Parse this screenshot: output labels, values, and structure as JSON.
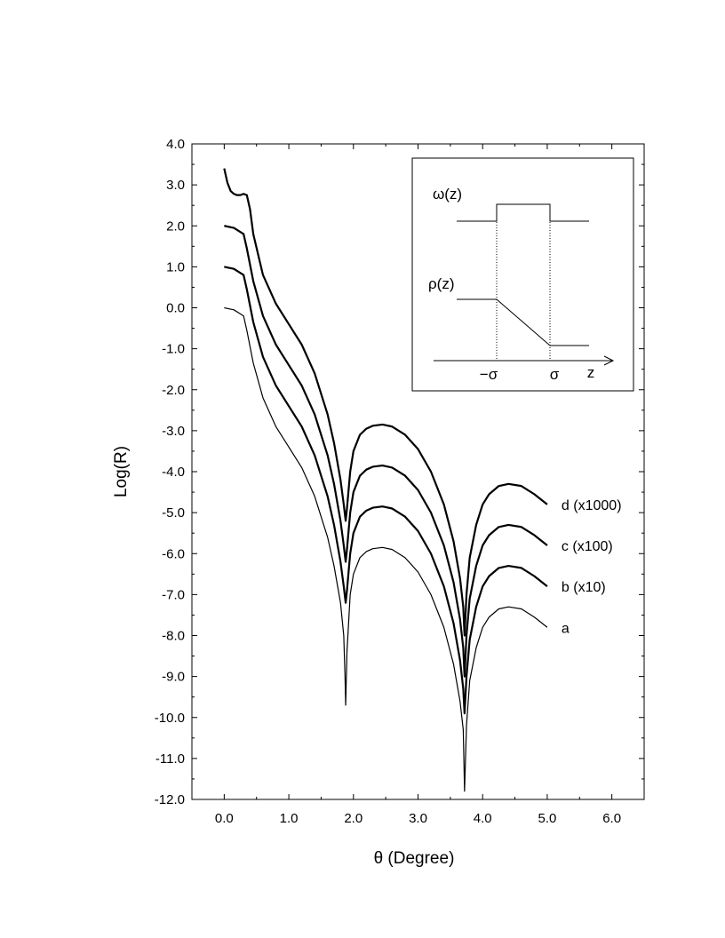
{
  "chart_data": {
    "type": "line",
    "xlabel": "θ (Degree)",
    "ylabel": "Log(R)",
    "xlim": [
      -0.5,
      6.5
    ],
    "ylim": [
      -12.0,
      4.0
    ],
    "x_ticks": [
      "0.0",
      "1.0",
      "2.0",
      "3.0",
      "4.0",
      "5.0",
      "6.0"
    ],
    "y_ticks": [
      "4.0",
      "3.0",
      "2.0",
      "1.0",
      "0.0",
      "-1.0",
      "-2.0",
      "-3.0",
      "-4.0",
      "-5.0",
      "-6.0",
      "-7.0",
      "-8.0",
      "-9.0",
      "-10.0",
      "-11.0",
      "-12.0"
    ],
    "grid": false,
    "series": [
      {
        "name": "a",
        "x": [
          0.0,
          0.15,
          0.25,
          0.3,
          0.35,
          0.45,
          0.6,
          0.8,
          1.0,
          1.2,
          1.4,
          1.6,
          1.7,
          1.8,
          1.85,
          1.87,
          1.88,
          1.9,
          1.95,
          2.0,
          2.1,
          2.2,
          2.3,
          2.45,
          2.6,
          2.8,
          3.0,
          3.2,
          3.4,
          3.55,
          3.65,
          3.7,
          3.72,
          3.75,
          3.8,
          3.9,
          4.0,
          4.1,
          4.25,
          4.4,
          4.6,
          4.8,
          5.0
        ],
        "y": [
          0.0,
          -0.05,
          -0.15,
          -0.2,
          -0.55,
          -1.35,
          -2.2,
          -2.9,
          -3.4,
          -3.9,
          -4.6,
          -5.6,
          -6.3,
          -7.2,
          -8.0,
          -9.0,
          -9.7,
          -8.4,
          -7.0,
          -6.5,
          -6.1,
          -5.95,
          -5.88,
          -5.85,
          -5.9,
          -6.1,
          -6.45,
          -7.0,
          -7.8,
          -8.7,
          -9.6,
          -10.3,
          -11.8,
          -10.2,
          -9.1,
          -8.3,
          -7.8,
          -7.55,
          -7.35,
          -7.3,
          -7.35,
          -7.55,
          -7.8
        ]
      },
      {
        "name": "b (x10)",
        "x": [
          0.0,
          0.15,
          0.25,
          0.3,
          0.35,
          0.45,
          0.6,
          0.8,
          1.0,
          1.2,
          1.4,
          1.6,
          1.7,
          1.8,
          1.85,
          1.88,
          1.9,
          1.95,
          2.0,
          2.1,
          2.2,
          2.3,
          2.45,
          2.6,
          2.8,
          3.0,
          3.2,
          3.4,
          3.55,
          3.65,
          3.7,
          3.72,
          3.75,
          3.8,
          3.9,
          4.0,
          4.1,
          4.25,
          4.4,
          4.6,
          4.8,
          5.0
        ],
        "y": [
          1.0,
          0.95,
          0.85,
          0.8,
          0.45,
          -0.35,
          -1.2,
          -1.9,
          -2.4,
          -2.9,
          -3.6,
          -4.6,
          -5.3,
          -6.2,
          -6.8,
          -7.2,
          -6.9,
          -6.0,
          -5.5,
          -5.1,
          -4.95,
          -4.88,
          -4.85,
          -4.9,
          -5.1,
          -5.45,
          -6.0,
          -6.8,
          -7.7,
          -8.6,
          -9.3,
          -9.9,
          -9.0,
          -8.1,
          -7.3,
          -6.8,
          -6.55,
          -6.35,
          -6.3,
          -6.35,
          -6.55,
          -6.8
        ]
      },
      {
        "name": "c (x100)",
        "x": [
          0.0,
          0.15,
          0.25,
          0.3,
          0.35,
          0.45,
          0.6,
          0.8,
          1.0,
          1.2,
          1.4,
          1.6,
          1.7,
          1.8,
          1.85,
          1.88,
          1.9,
          1.95,
          2.0,
          2.1,
          2.2,
          2.3,
          2.45,
          2.6,
          2.8,
          3.0,
          3.2,
          3.4,
          3.55,
          3.65,
          3.7,
          3.72,
          3.75,
          3.8,
          3.9,
          4.0,
          4.1,
          4.25,
          4.4,
          4.6,
          4.8,
          5.0
        ],
        "y": [
          2.0,
          1.95,
          1.85,
          1.8,
          1.45,
          0.65,
          -0.2,
          -0.9,
          -1.4,
          -1.9,
          -2.6,
          -3.6,
          -4.3,
          -5.2,
          -5.8,
          -6.2,
          -5.9,
          -5.0,
          -4.5,
          -4.1,
          -3.95,
          -3.88,
          -3.85,
          -3.9,
          -4.1,
          -4.45,
          -5.0,
          -5.8,
          -6.7,
          -7.6,
          -8.3,
          -9.0,
          -8.0,
          -7.1,
          -6.3,
          -5.8,
          -5.55,
          -5.35,
          -5.3,
          -5.35,
          -5.55,
          -5.8
        ]
      },
      {
        "name": "d (x1000)",
        "x": [
          0.0,
          0.05,
          0.1,
          0.15,
          0.2,
          0.25,
          0.3,
          0.35,
          0.4,
          0.45,
          0.6,
          0.8,
          1.0,
          1.2,
          1.4,
          1.6,
          1.7,
          1.8,
          1.85,
          1.88,
          1.9,
          1.95,
          2.0,
          2.1,
          2.2,
          2.3,
          2.45,
          2.6,
          2.8,
          3.0,
          3.2,
          3.4,
          3.55,
          3.65,
          3.7,
          3.72,
          3.75,
          3.8,
          3.9,
          4.0,
          4.1,
          4.25,
          4.4,
          4.6,
          4.8,
          5.0
        ],
        "y": [
          3.4,
          3.05,
          2.85,
          2.78,
          2.75,
          2.75,
          2.78,
          2.75,
          2.4,
          1.8,
          0.8,
          0.1,
          -0.4,
          -0.9,
          -1.6,
          -2.6,
          -3.3,
          -4.2,
          -4.8,
          -5.2,
          -4.9,
          -4.0,
          -3.5,
          -3.1,
          -2.95,
          -2.88,
          -2.85,
          -2.9,
          -3.1,
          -3.45,
          -4.0,
          -4.8,
          -5.7,
          -6.6,
          -7.3,
          -8.0,
          -7.0,
          -6.1,
          -5.3,
          -4.8,
          -4.55,
          -4.35,
          -4.3,
          -4.35,
          -4.55,
          -4.8
        ]
      }
    ],
    "inset": {
      "omega_label": "ω(z)",
      "rho_label": "ρ(z)",
      "neg_sigma_label": "−σ",
      "sigma_label": "σ",
      "z_label": "z"
    }
  }
}
